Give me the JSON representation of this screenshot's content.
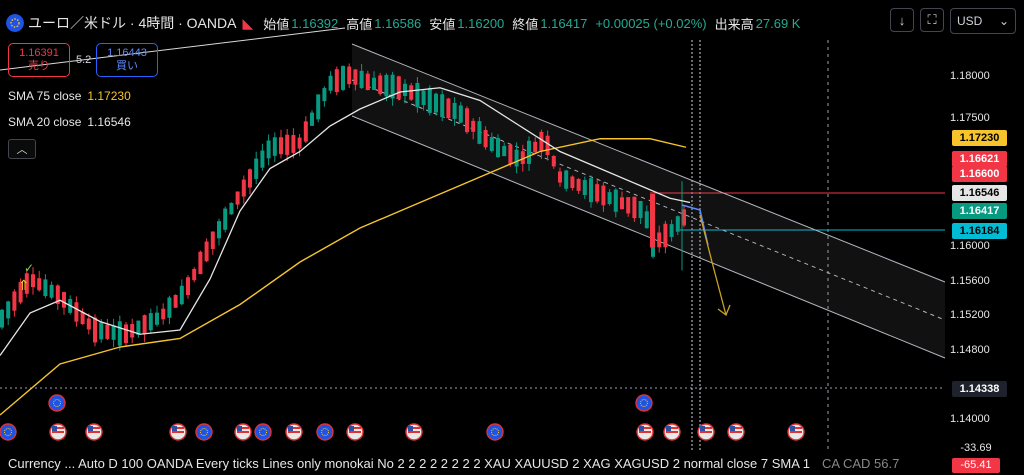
{
  "header": {
    "symbol": "ユーロ／米ドル · 4時間 · OANDA",
    "open_label": "始値",
    "open": "1.16392",
    "high_label": "高値",
    "high": "1.16586",
    "low_label": "安値",
    "low": "1.16200",
    "close_label": "終値",
    "close": "1.16417",
    "change": "+0.00025 (+0.02%)",
    "volume_label": "出来高",
    "volume": "27.69 K"
  },
  "toolbar": {
    "currency": "USD"
  },
  "trade": {
    "sell_price": "1.16391",
    "sell_label": "売り",
    "spread": "5.2",
    "buy_price": "1.16443",
    "buy_label": "買い"
  },
  "indicators": {
    "sma75_label": "SMA 75 close",
    "sma75_value": "1.17230",
    "sma20_label": "SMA 20 close",
    "sma20_value": "1.16546"
  },
  "axis": {
    "ticks": [
      "1.18000",
      "1.17500",
      "1.16000",
      "1.15600",
      "1.15200",
      "1.14800",
      "1.14000"
    ],
    "badges": [
      {
        "text": "1.17230",
        "bg": "#f7c52b",
        "fg": "#000000"
      },
      {
        "text": "1.16621",
        "bg": "#f23645",
        "fg": "#ffffff"
      },
      {
        "text": "1.16600",
        "bg": "#f23645",
        "fg": "#ffffff"
      },
      {
        "text": "1.16546",
        "bg": "#e6e6e6",
        "fg": "#000000"
      },
      {
        "text": "1.16417",
        "bg": "#089981",
        "fg": "#ffffff"
      },
      {
        "text": "1.16184",
        "bg": "#00bcd4",
        "fg": "#000000"
      },
      {
        "text": "1.14338",
        "bg": "#1e222d",
        "fg": "#ffffff"
      }
    ]
  },
  "bottom": {
    "text": "Currency ... Auto D 100 OANDA Every ticks Lines only monokai No 2 2 2 2 2 2 2 2 XAU XAUUSD 2 XAG XAGUSD 2 normal close 7 SMA 1",
    "tail": "CA  CAD   56.7",
    "val1": "-33.69",
    "val2": "-65.41"
  },
  "colors": {
    "up": "#089981",
    "down": "#f23645",
    "sma75": "#f7c52b",
    "sma20": "#e6e6e6",
    "channel": "#b2b5be"
  }
}
